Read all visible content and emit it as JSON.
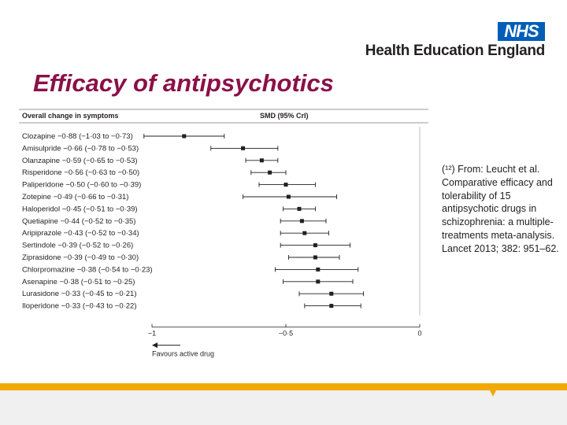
{
  "header": {
    "logo_text": "NHS",
    "org_name": "Health Education England",
    "logo_color": "#005eb8"
  },
  "slide": {
    "title": "Efficacy of antipsychotics",
    "title_color": "#8b1048",
    "accent_color": "#f2a900"
  },
  "citation": {
    "text": "(¹²) From: Leucht et al. Comparative efficacy and tolerability of 15 antipsychotic drugs in schizophrenia: a multiple-treatments meta-analysis. Lancet 2013; 382: 951–62."
  },
  "chart_data": {
    "type": "forest",
    "title": "Overall change in symptoms",
    "column_header": "SMD (95% CrI)",
    "xlim": [
      -1,
      0
    ],
    "xticks": [
      -1,
      -0.5,
      0
    ],
    "xtick_labels": [
      "−1",
      "−0·5",
      "0"
    ],
    "direction_label": "Favours active drug",
    "series": [
      {
        "label": "Clozapine −0·88 (−1·03 to −0·73)",
        "smd": -0.88,
        "lower": -1.03,
        "upper": -0.73
      },
      {
        "label": "Amisulpride −0·66 (−0·78 to −0·53)",
        "smd": -0.66,
        "lower": -0.78,
        "upper": -0.53
      },
      {
        "label": "Olanzapine −0·59 (−0·65 to −0·53)",
        "smd": -0.59,
        "lower": -0.65,
        "upper": -0.53
      },
      {
        "label": "Risperidone −0·56 (−0·63 to −0·50)",
        "smd": -0.56,
        "lower": -0.63,
        "upper": -0.5
      },
      {
        "label": "Paliperidone −0·50 (−0·60 to −0·39)",
        "smd": -0.5,
        "lower": -0.6,
        "upper": -0.39
      },
      {
        "label": "Zotepine −0·49 (−0·66 to −0·31)",
        "smd": -0.49,
        "lower": -0.66,
        "upper": -0.31
      },
      {
        "label": "Haloperidol −0·45 (−0·51 to −0·39)",
        "smd": -0.45,
        "lower": -0.51,
        "upper": -0.39
      },
      {
        "label": "Quetiapine −0·44 (−0·52 to −0·35)",
        "smd": -0.44,
        "lower": -0.52,
        "upper": -0.35
      },
      {
        "label": "Aripiprazole −0·43 (−0·52 to −0·34)",
        "smd": -0.43,
        "lower": -0.52,
        "upper": -0.34
      },
      {
        "label": "Sertindole −0·39 (−0·52 to −0·26)",
        "smd": -0.39,
        "lower": -0.52,
        "upper": -0.26
      },
      {
        "label": "Ziprasidone −0·39 (−0·49 to −0·30)",
        "smd": -0.39,
        "lower": -0.49,
        "upper": -0.3
      },
      {
        "label": "Chlorpromazine −0·38 (−0·54 to −0·23)",
        "smd": -0.38,
        "lower": -0.54,
        "upper": -0.23
      },
      {
        "label": "Asenapine −0·38 (−0·51 to −0·25)",
        "smd": -0.38,
        "lower": -0.51,
        "upper": -0.25
      },
      {
        "label": "Lurasidone −0·33 (−0·45 to −0·21)",
        "smd": -0.33,
        "lower": -0.45,
        "upper": -0.21
      },
      {
        "label": "Iloperidone −0·33 (−0·43 to −0·22)",
        "smd": -0.33,
        "lower": -0.43,
        "upper": -0.22
      }
    ]
  }
}
